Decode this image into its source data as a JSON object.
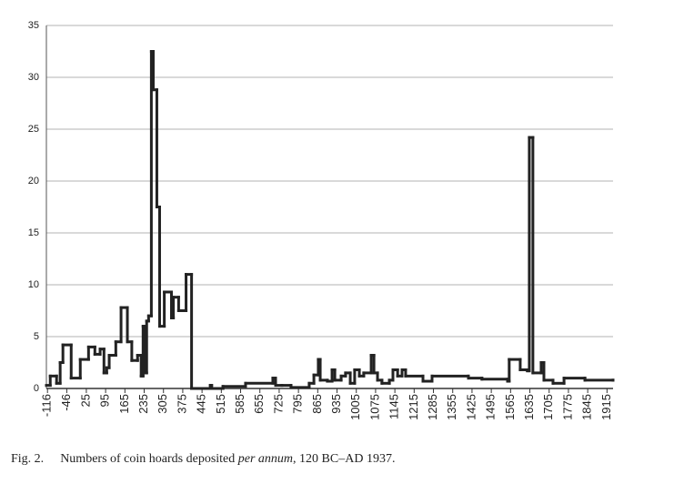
{
  "chart_data": {
    "type": "step",
    "color": "#222222",
    "grid": true,
    "xlim": [
      -120,
      1937
    ],
    "ylim": [
      0,
      35
    ],
    "yticks": [
      0,
      5,
      10,
      15,
      20,
      25,
      30,
      35
    ],
    "xticks": [
      -116,
      -46,
      25,
      95,
      165,
      235,
      305,
      375,
      445,
      515,
      585,
      655,
      725,
      795,
      865,
      935,
      1005,
      1075,
      1145,
      1215,
      1285,
      1355,
      1425,
      1495,
      1565,
      1635,
      1705,
      1775,
      1845,
      1915
    ],
    "x": [
      -120,
      -106,
      -83,
      -70,
      -60,
      -30,
      3,
      33,
      56,
      75,
      89,
      99,
      108,
      132,
      151,
      174,
      190,
      211,
      224,
      231,
      238,
      244,
      251,
      261,
      268,
      281,
      291,
      308,
      334,
      341,
      360,
      387,
      407,
      475,
      480,
      521,
      603,
      702,
      712,
      735,
      768,
      834,
      851,
      867,
      874,
      900,
      917,
      927,
      950,
      966,
      983,
      999,
      1016,
      1032,
      1059,
      1069,
      1082,
      1098,
      1125,
      1138,
      1155,
      1171,
      1184,
      1247,
      1280,
      1412,
      1461,
      1554,
      1560,
      1600,
      1626,
      1633,
      1646,
      1676,
      1686,
      1719,
      1759,
      1835,
      1937
    ],
    "values": [
      0.3,
      1.2,
      0.5,
      2.5,
      4.2,
      1,
      2.8,
      4,
      3.3,
      3.8,
      1.5,
      2,
      3.2,
      4.5,
      7.8,
      4.5,
      2.7,
      3.2,
      1.2,
      6,
      1.5,
      6.5,
      7,
      32.5,
      28.8,
      17.5,
      6,
      9.3,
      6.8,
      8.8,
      7.5,
      11,
      0,
      0.3,
      0,
      0.2,
      0.5,
      1,
      0.3,
      0.3,
      0.1,
      0.5,
      1.3,
      2.8,
      0.8,
      0.7,
      1.8,
      0.8,
      1.2,
      1.5,
      0.5,
      1.8,
      1.2,
      1.5,
      3.2,
      1.5,
      0.8,
      0.5,
      0.8,
      1.8,
      1.2,
      1.8,
      1.2,
      0.7,
      1.2,
      1,
      0.9,
      0.7,
      2.8,
      1.8,
      1.7,
      24.2,
      1.5,
      2.5,
      0.8,
      0.5,
      1,
      0.8,
      0.8
    ]
  },
  "caption": {
    "label": "Fig. 2.",
    "text_before": "Numbers of coin hoards deposited ",
    "emphasis": "per annum",
    "text_after": ", 120 BC–AD 1937."
  }
}
